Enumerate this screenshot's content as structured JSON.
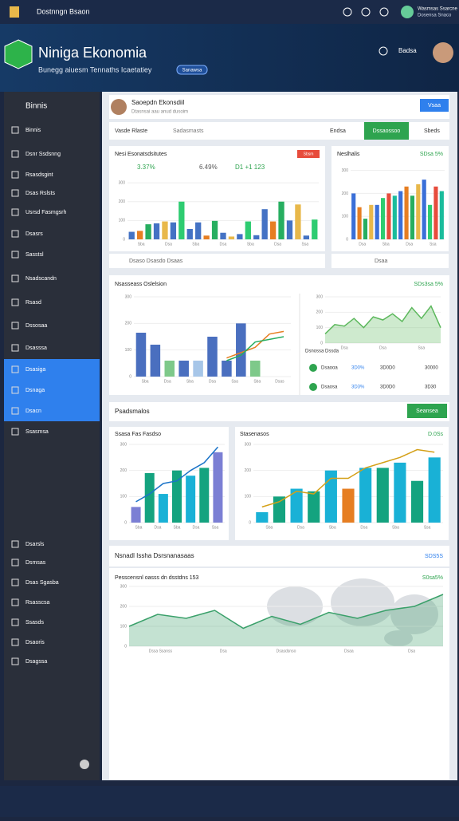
{
  "topbar": {
    "app_name": "Dostnngn Bsaon",
    "user_line1": "Wasmsas Ssarcne",
    "user_line2": "Dosensa Snaco"
  },
  "header": {
    "title": "Niniga Ekonomia",
    "subtitle": "Bunegg aiuesm Tennaths Icaetatiey",
    "badge": "Sanawsa",
    "menu": "Badsa"
  },
  "sidebar": {
    "title": "Binnis",
    "items": [
      "Binnis",
      "Dsnr Ssdsnng",
      "Rsasdsgint",
      "Dsas Rslsts",
      "Usrsd Fasmgsrh",
      "Dsasrs",
      "Sasstsl",
      "Nsadscandn",
      "Rsasd",
      "Dssosaa",
      "Dsasssa",
      "Dsasiga",
      "Dsnaga",
      "Dsacn",
      "Ssasmsa"
    ],
    "active_items": [
      11,
      12,
      13
    ],
    "footer_items": [
      "Dsarsls",
      "Dsmsas",
      "Dsas Sgasba",
      "Rsasscsa",
      "Ssasds",
      "Dsaoris",
      "Dsagssa"
    ]
  },
  "profile": {
    "name": "Saoepdn Ekonsdiil",
    "detail": "Dtasnsai aau anud dusoim",
    "button": "Vsaa"
  },
  "toolbar": {
    "filter1": "Vasde Rlaste",
    "filter2": "Sadasmasts",
    "filter3": "Endsa",
    "button": "Dssaossoo",
    "filter4": "Sbeds"
  },
  "charts": [
    {
      "title": "Nesi Esonatsdsitutes",
      "tag": "Sbsm",
      "stats": [
        "3.37%",
        "6.49%",
        "D1 +1 123"
      ],
      "ylim": [
        0,
        330
      ],
      "yticks": [
        0,
        100,
        200,
        300
      ],
      "xlabels": [
        "Sba",
        "Dsa",
        "Sba",
        "Dsa",
        "Sba",
        "Dsa",
        "Ssa"
      ],
      "series": [
        {
          "type": "bar",
          "values": [
            40,
            45,
            80,
            85,
            95,
            90,
            200,
            55,
            90,
            20,
            98,
            35,
            15,
            28,
            95,
            22,
            160,
            95,
            200,
            100,
            185,
            20,
            105
          ],
          "colors": [
            "#4472c4",
            "#e67e22",
            "#27ae60",
            "#4472c4",
            "#e8b84a",
            "#4472c4",
            "#2ecc71",
            "#4472c4"
          ]
        }
      ],
      "footer": "Dsaso Dsasdo Dsaas"
    },
    {
      "title": "Neslhalis",
      "subtitle": "SDsa 5%",
      "ylim": [
        0,
        330
      ],
      "yticks": [
        0,
        100,
        200,
        300
      ],
      "xlabels": [
        "Dsa",
        "Sba",
        "Dsa",
        "Ssa"
      ],
      "series": [
        {
          "type": "bar",
          "values": [
            200,
            140,
            90,
            150,
            150,
            180,
            200,
            190,
            210,
            230,
            190,
            240,
            260,
            150,
            230,
            210
          ],
          "colors": [
            "#3a6fd8",
            "#e67e22",
            "#27ae60",
            "#e8b84a",
            "#3a6fd8",
            "#2ecc71",
            "#e74c3c",
            "#1abc9c"
          ]
        }
      ],
      "footer": "Dsaa"
    },
    {
      "title": "Nsasseass Oslelsion",
      "subtitle": "SDs3sa 5%",
      "ylim": [
        0,
        300
      ],
      "yticks": [
        0,
        100,
        200,
        300
      ],
      "xlabels": [
        "Sba",
        "Dsa",
        "Sba",
        "Dsa",
        "Ssa",
        "Sba",
        "Dsas"
      ],
      "series": [
        {
          "type": "bar",
          "values": [
            165,
            120,
            60,
            60,
            60,
            150,
            60,
            200,
            60
          ],
          "colors": [
            "#4a6fbf",
            "#4a6fbf",
            "#7ec98a",
            "#4a6fbf",
            "#a7c6e8",
            "#4a6fbf"
          ]
        },
        {
          "type": "line",
          "values": [
            null,
            null,
            null,
            null,
            null,
            null,
            70,
            90,
            110,
            160,
            170
          ],
          "color": "#e67e22"
        },
        {
          "type": "line",
          "values": [
            null,
            null,
            null,
            null,
            null,
            null,
            60,
            80,
            130,
            140,
            150
          ],
          "color": "#27ae60"
        }
      ]
    },
    {
      "ylim": [
        0,
        300
      ],
      "yticks": [
        0,
        100,
        200,
        300
      ],
      "xlabels": [
        "Dsa",
        "Dsa",
        "Ssa"
      ],
      "legend": "Dsnossa Dssda",
      "series": [
        {
          "type": "area",
          "values": [
            60,
            120,
            110,
            160,
            100,
            170,
            150,
            190,
            140,
            230,
            160,
            240,
            100
          ],
          "color": "#5cb85c"
        }
      ],
      "rows": [
        [
          "Dsaooa",
          "3D0%",
          "3D0D0",
          "30000"
        ],
        [
          "Dsaosa",
          "3D3%",
          "3D0D0",
          "3D30"
        ]
      ]
    },
    {
      "title": "Ssasa Fas Fasdso",
      "ylim": [
        0,
        300
      ],
      "yticks": [
        0,
        100,
        200,
        300
      ],
      "xlabels": [
        "Sba",
        "Dsa",
        "Sba",
        "Dsa",
        "Ssa"
      ],
      "series": [
        {
          "type": "bar",
          "values": [
            60,
            190,
            110,
            200,
            180,
            210,
            270
          ],
          "colors": [
            "#7b7fd4",
            "#14a37f",
            "#19b1d6",
            "#14a37f",
            "#19b1d6",
            "#14a37f"
          ]
        },
        {
          "type": "line",
          "values": [
            80,
            110,
            150,
            160,
            200,
            230,
            290
          ],
          "color": "#1a73c8"
        }
      ]
    },
    {
      "title": "Stasenasos",
      "subtitle": "D.0Ss",
      "ylim": [
        0,
        300
      ],
      "yticks": [
        0,
        100,
        200,
        300
      ],
      "xlabels": [
        "Sba",
        "Dsa",
        "Sba",
        "Dsa",
        "Sba",
        "Ssa"
      ],
      "series": [
        {
          "type": "bar",
          "values": [
            40,
            100,
            130,
            120,
            200,
            130,
            210,
            210,
            230,
            160,
            250
          ],
          "colors": [
            "#19b1d6",
            "#14a37f",
            "#19b1d6",
            "#14a37f",
            "#19b1d6",
            "#e67e22"
          ]
        },
        {
          "type": "line",
          "values": [
            60,
            80,
            120,
            110,
            170,
            170,
            210,
            230,
            250,
            280,
            270
          ],
          "color": "#d4a017"
        }
      ]
    },
    {
      "title": "Pesscensnl oasss dn dsstdns 153",
      "subtitle": "S0sa5%",
      "ylim": [
        0,
        300
      ],
      "yticks": [
        0,
        100,
        200,
        300
      ],
      "xlabels": [
        "Dssa Ssanss",
        "Dsa",
        "Dsasdsnso",
        "Dsaa",
        "Dsa"
      ],
      "series": [
        {
          "type": "area",
          "values": [
            100,
            160,
            140,
            180,
            90,
            150,
            110,
            170,
            140,
            180,
            200,
            260
          ],
          "color": "#3aa06a"
        }
      ]
    }
  ],
  "sections": {
    "main": "Psadsmalos",
    "main_button": "Seansea",
    "map": "Nsnadl Issha Dsrsnanasaas",
    "map_value": "SDS5S"
  }
}
